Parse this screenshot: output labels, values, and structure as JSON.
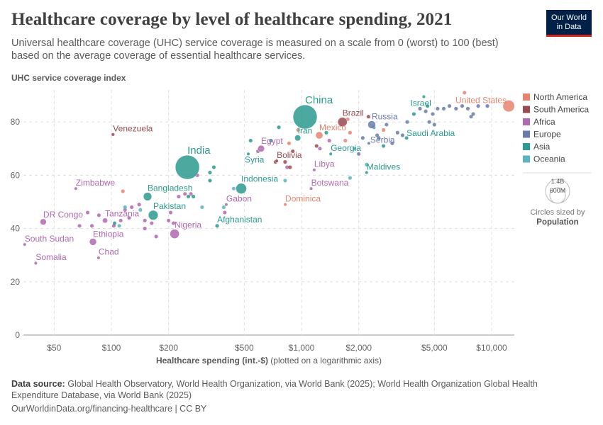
{
  "header": {
    "title": "Healthcare coverage by level of healthcare spending, 2021",
    "subtitle": "Universal healthcare coverage (UHC) service coverage is measured on a scale from 0 (worst) to 100 (best) based on the average coverage of essential healthcare services.",
    "logo_line1": "Our World",
    "logo_line2": "in Data"
  },
  "footer": {
    "source_label": "Data source:",
    "source_text": "Global Health Observatory, World Health Organization, via World Bank (2025); World Health Organization Global Health Expenditure Database, via World Bank (2025)",
    "link": "OurWorldinData.org/financing-healthcare | CC BY"
  },
  "chart_data": {
    "type": "scatter",
    "title": "Healthcare coverage by level of healthcare spending, 2021",
    "ylabel": "UHC service coverage index",
    "xlabel": "Healthcare spending (int.-$)",
    "xlabel_note": "(plotted on a logarithmic axis)",
    "x_scale": "log",
    "xlim": [
      34,
      13200
    ],
    "ylim": [
      0,
      92
    ],
    "x_ticks": [
      {
        "v": 50,
        "label": "$50"
      },
      {
        "v": 100,
        "label": "$100"
      },
      {
        "v": 200,
        "label": "$200"
      },
      {
        "v": 500,
        "label": "$500"
      },
      {
        "v": 1000,
        "label": "$1,000"
      },
      {
        "v": 2000,
        "label": "$2,000"
      },
      {
        "v": 5000,
        "label": "$5,000"
      },
      {
        "v": 10000,
        "label": "$10,000"
      }
    ],
    "y_ticks": [
      {
        "v": 0,
        "label": "0"
      },
      {
        "v": 20,
        "label": "20"
      },
      {
        "v": 40,
        "label": "40"
      },
      {
        "v": 60,
        "label": "60"
      },
      {
        "v": 80,
        "label": "80"
      }
    ],
    "grid": true,
    "legend_position": "right",
    "legend": [
      {
        "name": "North America",
        "color": "#E8836F"
      },
      {
        "name": "South America",
        "color": "#9A4A52"
      },
      {
        "name": "Africa",
        "color": "#B169B0"
      },
      {
        "name": "Europe",
        "color": "#6A7BAA"
      },
      {
        "name": "Asia",
        "color": "#2C9A8F"
      },
      {
        "name": "Oceania",
        "color": "#5AB5C0"
      }
    ],
    "size_legend": {
      "large": "1.4B",
      "small": "600M",
      "caption": "Circles sized by",
      "variable": "Population"
    },
    "points": [
      {
        "name": "Venezuela",
        "region": "South America",
        "x": 102,
        "y": 75.3,
        "pop": 28
      },
      {
        "name": "India",
        "region": "Asia",
        "x": 251,
        "y": 63,
        "pop": 1410
      },
      {
        "name": "China",
        "region": "Asia",
        "x": 1044,
        "y": 81.9,
        "pop": 1412
      },
      {
        "name": "Brazil",
        "region": "South America",
        "x": 1643,
        "y": 80,
        "pop": 214
      },
      {
        "name": "Iran",
        "region": "Asia",
        "x": 955,
        "y": 74,
        "pop": 88
      },
      {
        "name": "Mexico",
        "region": "North America",
        "x": 1240,
        "y": 75,
        "pop": 127
      },
      {
        "name": "Russia",
        "region": "Europe",
        "x": 2340,
        "y": 79,
        "pop": 145
      },
      {
        "name": "Serbia",
        "region": "Europe",
        "x": 2260,
        "y": 72,
        "pop": 7
      },
      {
        "name": "Saudi Arabia",
        "region": "Asia",
        "x": 3570,
        "y": 74,
        "pop": 36
      },
      {
        "name": "Israel",
        "region": "Asia",
        "x": 4400,
        "y": 89.5,
        "pop": 9
      },
      {
        "name": "United States",
        "region": "North America",
        "x": 12300,
        "y": 86,
        "pop": 333
      },
      {
        "name": "Egypt",
        "region": "Africa",
        "x": 613,
        "y": 70,
        "pop": 109
      },
      {
        "name": "Syria",
        "region": "Asia",
        "x": 525,
        "y": 68,
        "pop": 21
      },
      {
        "name": "Bolivia",
        "region": "South America",
        "x": 741,
        "y": 65.4,
        "pop": 12
      },
      {
        "name": "Georgia",
        "region": "Asia",
        "x": 1425,
        "y": 68,
        "pop": 4
      },
      {
        "name": "Libya",
        "region": "Africa",
        "x": 1166,
        "y": 62,
        "pop": 7
      },
      {
        "name": "Maldives",
        "region": "Asia",
        "x": 2200,
        "y": 61,
        "pop": 1
      },
      {
        "name": "Indonesia",
        "region": "Asia",
        "x": 482,
        "y": 55,
        "pop": 274
      },
      {
        "name": "Botswana",
        "region": "Africa",
        "x": 1124,
        "y": 55,
        "pop": 3
      },
      {
        "name": "Dominica",
        "region": "North America",
        "x": 821,
        "y": 49,
        "pop": 1
      },
      {
        "name": "Gabon",
        "region": "Africa",
        "x": 402,
        "y": 49,
        "pop": 2
      },
      {
        "name": "Afghanistan",
        "region": "Asia",
        "x": 360,
        "y": 41,
        "pop": 40
      },
      {
        "name": "Zimbabwe",
        "region": "Africa",
        "x": 65,
        "y": 55,
        "pop": 16
      },
      {
        "name": "Bangladesh",
        "region": "Asia",
        "x": 155,
        "y": 52,
        "pop": 169
      },
      {
        "name": "Pakistan",
        "region": "Asia",
        "x": 166,
        "y": 45,
        "pop": 231
      },
      {
        "name": "Tanzania",
        "region": "Africa",
        "x": 92.6,
        "y": 43,
        "pop": 64
      },
      {
        "name": "DR Congo",
        "region": "Africa",
        "x": 43.8,
        "y": 42.5,
        "pop": 95
      },
      {
        "name": "Nigeria",
        "region": "Africa",
        "x": 215,
        "y": 38,
        "pop": 213
      },
      {
        "name": "Ethiopia",
        "region": "Africa",
        "x": 80,
        "y": 35,
        "pop": 120
      },
      {
        "name": "South Sudan",
        "region": "Africa",
        "x": 35,
        "y": 34,
        "pop": 11
      },
      {
        "name": "Chad",
        "region": "Africa",
        "x": 85.6,
        "y": 29,
        "pop": 17
      },
      {
        "name": "Somalia",
        "region": "Africa",
        "x": 40,
        "y": 27,
        "pop": 17
      }
    ],
    "unlabeled_points": [
      [
        75,
        46,
        "Africa"
      ],
      [
        86,
        45,
        "Africa"
      ],
      [
        68,
        41,
        "Africa"
      ],
      [
        79,
        41,
        "Africa"
      ],
      [
        103,
        41,
        "Africa"
      ],
      [
        112,
        43,
        "Africa"
      ],
      [
        118,
        47,
        "Africa"
      ],
      [
        128,
        48,
        "Africa"
      ],
      [
        140,
        49,
        "Africa"
      ],
      [
        124,
        44,
        "Africa"
      ],
      [
        150,
        43,
        "Africa"
      ],
      [
        163,
        42,
        "Africa"
      ],
      [
        150,
        40,
        "Africa"
      ],
      [
        172,
        37,
        "Africa"
      ],
      [
        200,
        43,
        "Africa"
      ],
      [
        205,
        46,
        "Africa"
      ],
      [
        212,
        42,
        "Africa"
      ],
      [
        226,
        52,
        "Africa"
      ],
      [
        244,
        53,
        "Africa"
      ],
      [
        262,
        53,
        "Africa"
      ],
      [
        283,
        60,
        "Africa"
      ],
      [
        395,
        46,
        "Africa"
      ],
      [
        110,
        41,
        "Oceania"
      ],
      [
        118,
        48,
        "Oceania"
      ],
      [
        104,
        42,
        "Asia"
      ],
      [
        142,
        47,
        "Oceania"
      ],
      [
        115,
        54,
        "North America"
      ],
      [
        254,
        52,
        "Asia"
      ],
      [
        270,
        52,
        "Asia"
      ],
      [
        330,
        61,
        "Asia"
      ],
      [
        346,
        63,
        "Asia"
      ],
      [
        330,
        58,
        "Asia"
      ],
      [
        300,
        48,
        "Oceania"
      ],
      [
        390,
        48,
        "Oceania"
      ],
      [
        440,
        55,
        "Oceania"
      ],
      [
        820,
        58,
        "Oceania"
      ],
      [
        540,
        73,
        "Asia"
      ],
      [
        590,
        69,
        "Africa"
      ],
      [
        690,
        73,
        "Asia"
      ],
      [
        760,
        78,
        "Asia"
      ],
      [
        730,
        65,
        "South America"
      ],
      [
        820,
        65,
        "South America"
      ],
      [
        840,
        63,
        "Africa"
      ],
      [
        870,
        63,
        "South America"
      ],
      [
        900,
        69,
        "South America"
      ],
      [
        860,
        72,
        "North America"
      ],
      [
        960,
        77,
        "North America"
      ],
      [
        1350,
        76,
        "Asia"
      ],
      [
        1200,
        71,
        "South America"
      ],
      [
        1250,
        70,
        "Africa"
      ],
      [
        1400,
        73,
        "Africa"
      ],
      [
        1700,
        73,
        "North America"
      ],
      [
        1800,
        76,
        "North America"
      ],
      [
        1750,
        81,
        "North America"
      ],
      [
        1900,
        70,
        "Oceania"
      ],
      [
        1800,
        59,
        "Oceania"
      ],
      [
        2200,
        64,
        "Oceania"
      ],
      [
        2000,
        68,
        "Europe"
      ],
      [
        2250,
        82,
        "South America"
      ],
      [
        2400,
        78,
        "Asia"
      ],
      [
        2500,
        75,
        "Europe"
      ],
      [
        2550,
        74,
        "Europe"
      ],
      [
        2700,
        77,
        "North America"
      ],
      [
        2800,
        79,
        "Europe"
      ],
      [
        3200,
        76,
        "Europe"
      ],
      [
        3400,
        75,
        "Europe"
      ],
      [
        3600,
        80,
        "Europe"
      ],
      [
        3900,
        83,
        "Asia"
      ],
      [
        4200,
        85,
        "Europe"
      ],
      [
        4500,
        84,
        "Europe"
      ],
      [
        4600,
        86,
        "Asia"
      ],
      [
        4900,
        83,
        "Europe"
      ],
      [
        5200,
        85,
        "Europe"
      ],
      [
        5600,
        85,
        "Europe"
      ],
      [
        6000,
        86,
        "Europe"
      ],
      [
        6500,
        85,
        "Europe"
      ],
      [
        7000,
        86,
        "Europe"
      ],
      [
        7200,
        91,
        "North America"
      ],
      [
        7500,
        85,
        "Europe"
      ],
      [
        7800,
        82,
        "Europe"
      ],
      [
        8000,
        83,
        "Europe"
      ],
      [
        8500,
        86,
        "Europe"
      ],
      [
        9500,
        86,
        "Europe"
      ],
      [
        4700,
        80,
        "Europe"
      ],
      [
        3000,
        72,
        "Europe"
      ],
      [
        2100,
        74,
        "Europe"
      ],
      [
        2700,
        71,
        "Asia"
      ],
      [
        5000,
        79,
        "Europe"
      ]
    ]
  }
}
